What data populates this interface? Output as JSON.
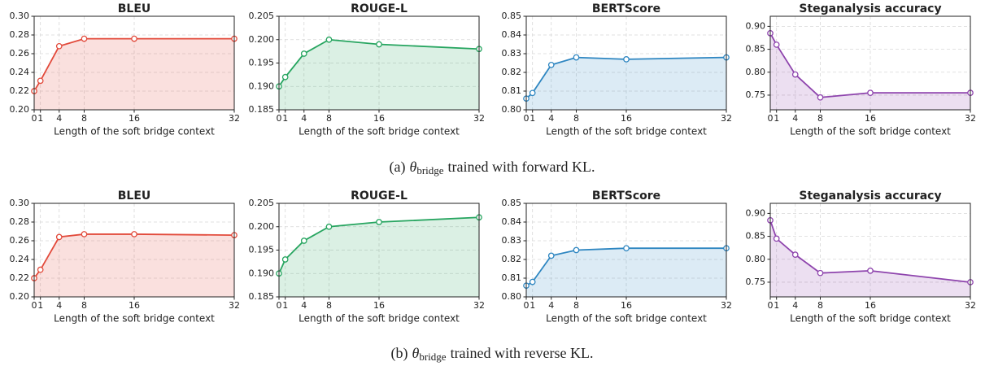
{
  "chart_data": [
    {
      "type": "line",
      "title": "BLEU",
      "xlabel": "Length of the soft bridge context",
      "x": [
        0,
        1,
        4,
        8,
        16,
        32
      ],
      "values": [
        0.22,
        0.231,
        0.268,
        0.276,
        0.276,
        0.276
      ],
      "color": "#e24a3b",
      "fill_area": true,
      "xlim": [
        0,
        32
      ],
      "xticks": [
        0,
        1,
        4,
        8,
        16,
        32
      ],
      "ylim": [
        0.2,
        0.3
      ],
      "yticks": [
        {
          "value": 0.2,
          "label": "0.20"
        },
        0.22,
        0.24,
        0.26,
        0.28,
        {
          "value": 0.3,
          "label": "0.30"
        }
      ],
      "grid": true
    },
    {
      "type": "line",
      "title": "ROUGE-L",
      "xlabel": "Length of the soft bridge context",
      "x": [
        0,
        1,
        4,
        8,
        16,
        32
      ],
      "values": [
        0.19,
        0.192,
        0.197,
        0.2,
        0.199,
        0.198
      ],
      "color": "#27a560",
      "fill_area": true,
      "xlim": [
        0,
        32
      ],
      "xticks": [
        0,
        1,
        4,
        8,
        16,
        32
      ],
      "ylim": [
        0.185,
        0.205
      ],
      "yticks": [
        0.185,
        {
          "value": 0.19,
          "label": "0.190"
        },
        0.195,
        {
          "value": 0.2,
          "label": "0.200"
        },
        0.205
      ],
      "grid": true
    },
    {
      "type": "line",
      "title": "BERTScore",
      "xlabel": "Length of the soft bridge context",
      "x": [
        0,
        1,
        4,
        8,
        16,
        32
      ],
      "values": [
        0.806,
        0.809,
        0.824,
        0.828,
        0.827,
        0.828
      ],
      "color": "#2e86c1",
      "fill_area": true,
      "xlim": [
        0,
        32
      ],
      "xticks": [
        0,
        1,
        4,
        8,
        16,
        32
      ],
      "ylim": [
        0.8,
        0.85
      ],
      "yticks": [
        {
          "value": 0.8,
          "label": "0.80"
        },
        0.81,
        0.82,
        0.83,
        0.84,
        0.85
      ],
      "grid": true
    },
    {
      "type": "line",
      "title": "Steganalysis accuracy",
      "xlabel": "Length of the soft bridge context",
      "x": [
        0,
        1,
        4,
        8,
        16,
        32
      ],
      "values": [
        0.885,
        0.86,
        0.795,
        0.745,
        0.755,
        0.755
      ],
      "color": "#8e44ad",
      "fill_area": true,
      "xlim": [
        0,
        32
      ],
      "xticks": [
        0,
        1,
        4,
        8,
        16,
        32
      ],
      "ylim": [
        0.718,
        0.922
      ],
      "yticks": [
        0.75,
        {
          "value": 0.8,
          "label": "0.80"
        },
        0.85,
        {
          "value": 0.9,
          "label": "0.90"
        }
      ],
      "grid": true
    },
    {
      "type": "line",
      "title": "BLEU",
      "xlabel": "Length of the soft bridge context",
      "x": [
        0,
        1,
        4,
        8,
        16,
        32
      ],
      "values": [
        0.22,
        0.229,
        0.264,
        0.267,
        0.267,
        0.266
      ],
      "color": "#e24a3b",
      "fill_area": true,
      "xlim": [
        0,
        32
      ],
      "xticks": [
        0,
        1,
        4,
        8,
        16,
        32
      ],
      "ylim": [
        0.2,
        0.3
      ],
      "yticks": [
        {
          "value": 0.2,
          "label": "0.20"
        },
        0.22,
        0.24,
        0.26,
        0.28,
        {
          "value": 0.3,
          "label": "0.30"
        }
      ],
      "grid": true
    },
    {
      "type": "line",
      "title": "ROUGE-L",
      "xlabel": "Length of the soft bridge context",
      "x": [
        0,
        1,
        4,
        8,
        16,
        32
      ],
      "values": [
        0.19,
        0.193,
        0.197,
        0.2,
        0.201,
        0.202
      ],
      "color": "#27a560",
      "fill_area": true,
      "xlim": [
        0,
        32
      ],
      "xticks": [
        0,
        1,
        4,
        8,
        16,
        32
      ],
      "ylim": [
        0.185,
        0.205
      ],
      "yticks": [
        0.185,
        {
          "value": 0.19,
          "label": "0.190"
        },
        0.195,
        {
          "value": 0.2,
          "label": "0.200"
        },
        0.205
      ],
      "grid": true
    },
    {
      "type": "line",
      "title": "BERTScore",
      "xlabel": "Length of the soft bridge context",
      "x": [
        0,
        1,
        4,
        8,
        16,
        32
      ],
      "values": [
        0.806,
        0.808,
        0.822,
        0.825,
        0.826,
        0.826
      ],
      "color": "#2e86c1",
      "fill_area": true,
      "xlim": [
        0,
        32
      ],
      "xticks": [
        0,
        1,
        4,
        8,
        16,
        32
      ],
      "ylim": [
        0.8,
        0.85
      ],
      "yticks": [
        {
          "value": 0.8,
          "label": "0.80"
        },
        0.81,
        0.82,
        0.83,
        0.84,
        0.85
      ],
      "grid": true
    },
    {
      "type": "line",
      "title": "Steganalysis accuracy",
      "xlabel": "Length of the soft bridge context",
      "x": [
        0,
        1,
        4,
        8,
        16,
        32
      ],
      "values": [
        0.885,
        0.845,
        0.81,
        0.77,
        0.775,
        0.75
      ],
      "color": "#8e44ad",
      "fill_area": true,
      "xlim": [
        0,
        32
      ],
      "xticks": [
        0,
        1,
        4,
        8,
        16,
        32
      ],
      "ylim": [
        0.718,
        0.922
      ],
      "yticks": [
        0.75,
        {
          "value": 0.8,
          "label": "0.80"
        },
        0.85,
        {
          "value": 0.9,
          "label": "0.90"
        }
      ],
      "grid": true
    }
  ],
  "captions": [
    {
      "label": "(a)",
      "symbol": "θ",
      "subscript": "bridge",
      "text": "trained with forward KL."
    },
    {
      "label": "(b)",
      "symbol": "θ",
      "subscript": "bridge",
      "text": "trained with reverse KL."
    }
  ]
}
